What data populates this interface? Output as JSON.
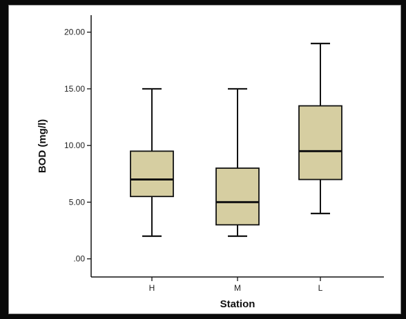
{
  "chart_data": {
    "type": "boxplot",
    "title": "",
    "xlabel": "Station",
    "ylabel": "BOD (mg/l)",
    "categories": [
      "H",
      "M",
      "L"
    ],
    "y_ticks": [
      ".00",
      "5.00",
      "10.00",
      "15.00",
      "20.00"
    ],
    "ylim": [
      -1.6,
      21.5
    ],
    "grid": false,
    "legend": "none",
    "box_color": "#d6cea1",
    "boxes": [
      {
        "category": "H",
        "min": 2.0,
        "q1": 5.5,
        "median": 7.0,
        "q3": 9.5,
        "max": 15.0
      },
      {
        "category": "M",
        "min": 2.0,
        "q1": 3.0,
        "median": 5.0,
        "q3": 8.0,
        "max": 15.0
      },
      {
        "category": "L",
        "min": 4.0,
        "q1": 7.0,
        "median": 9.5,
        "q3": 13.5,
        "max": 19.0
      }
    ]
  }
}
